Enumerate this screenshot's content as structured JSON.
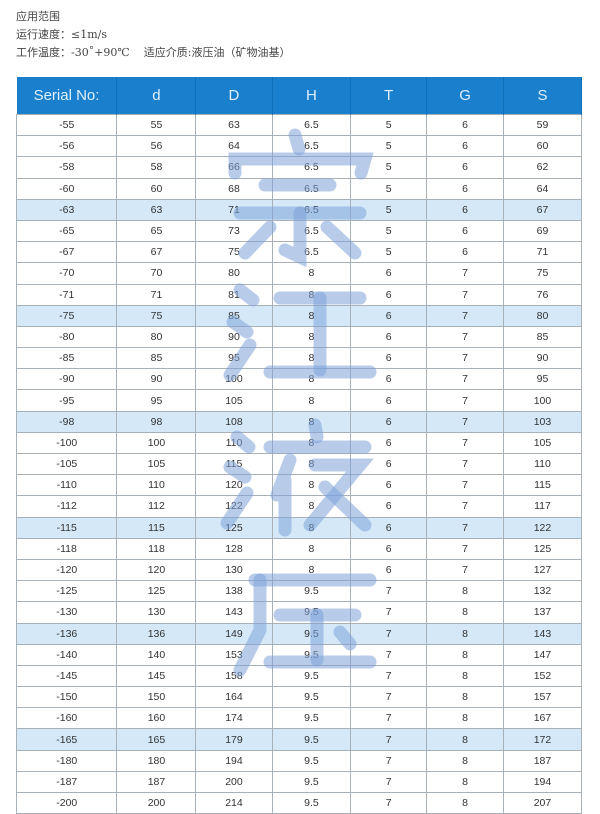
{
  "intro": {
    "title": "应用范围",
    "speed": "运行速度：≤1m/s",
    "temperature": "工作温度：-30˚+90℃",
    "medium": "适应介质:液压油（矿物油基）"
  },
  "watermark": [
    "宗",
    "江",
    "液",
    "压"
  ],
  "table": {
    "headers": [
      "Serial No:",
      "d",
      "D",
      "H",
      "T",
      "G",
      "S"
    ],
    "header_color": "#1a7fcc",
    "highlight_color": "#d4e8f8",
    "rows": [
      {
        "cells": [
          "-55",
          "55",
          "63",
          "6.5",
          "5",
          "6",
          "59"
        ],
        "hl": false
      },
      {
        "cells": [
          "-56",
          "56",
          "64",
          "6.5",
          "5",
          "6",
          "60"
        ],
        "hl": false
      },
      {
        "cells": [
          "-58",
          "58",
          "66",
          "6.5",
          "5",
          "6",
          "62"
        ],
        "hl": false
      },
      {
        "cells": [
          "-60",
          "60",
          "68",
          "6.5",
          "5",
          "6",
          "64"
        ],
        "hl": false
      },
      {
        "cells": [
          "-63",
          "63",
          "71",
          "6.5",
          "5",
          "6",
          "67"
        ],
        "hl": true
      },
      {
        "cells": [
          "-65",
          "65",
          "73",
          "6.5",
          "5",
          "6",
          "69"
        ],
        "hl": false
      },
      {
        "cells": [
          "-67",
          "67",
          "75",
          "6.5",
          "5",
          "6",
          "71"
        ],
        "hl": false
      },
      {
        "cells": [
          "-70",
          "70",
          "80",
          "8",
          "6",
          "7",
          "75"
        ],
        "hl": false
      },
      {
        "cells": [
          "-71",
          "71",
          "81",
          "8",
          "6",
          "7",
          "76"
        ],
        "hl": false
      },
      {
        "cells": [
          "-75",
          "75",
          "85",
          "8",
          "6",
          "7",
          "80"
        ],
        "hl": true
      },
      {
        "cells": [
          "-80",
          "80",
          "90",
          "8",
          "6",
          "7",
          "85"
        ],
        "hl": false
      },
      {
        "cells": [
          "-85",
          "85",
          "95",
          "8",
          "6",
          "7",
          "90"
        ],
        "hl": false
      },
      {
        "cells": [
          "-90",
          "90",
          "100",
          "8",
          "6",
          "7",
          "95"
        ],
        "hl": false
      },
      {
        "cells": [
          "-95",
          "95",
          "105",
          "8",
          "6",
          "7",
          "100"
        ],
        "hl": false
      },
      {
        "cells": [
          "-98",
          "98",
          "108",
          "8",
          "6",
          "7",
          "103"
        ],
        "hl": true
      },
      {
        "cells": [
          "-100",
          "100",
          "110",
          "8",
          "6",
          "7",
          "105"
        ],
        "hl": false
      },
      {
        "cells": [
          "-105",
          "105",
          "115",
          "8",
          "6",
          "7",
          "110"
        ],
        "hl": false
      },
      {
        "cells": [
          "-110",
          "110",
          "120",
          "8",
          "6",
          "7",
          "115"
        ],
        "hl": false
      },
      {
        "cells": [
          "-112",
          "112",
          "122",
          "8",
          "6",
          "7",
          "117"
        ],
        "hl": false
      },
      {
        "cells": [
          "-115",
          "115",
          "125",
          "8",
          "6",
          "7",
          "122"
        ],
        "hl": true
      },
      {
        "cells": [
          "-118",
          "118",
          "128",
          "8",
          "6",
          "7",
          "125"
        ],
        "hl": false
      },
      {
        "cells": [
          "-120",
          "120",
          "130",
          "8",
          "6",
          "7",
          "127"
        ],
        "hl": false
      },
      {
        "cells": [
          "-125",
          "125",
          "138",
          "9.5",
          "7",
          "8",
          "132"
        ],
        "hl": false
      },
      {
        "cells": [
          "-130",
          "130",
          "143",
          "9.5",
          "7",
          "8",
          "137"
        ],
        "hl": false
      },
      {
        "cells": [
          "-136",
          "136",
          "149",
          "9.5",
          "7",
          "8",
          "143"
        ],
        "hl": true
      },
      {
        "cells": [
          "-140",
          "140",
          "153",
          "9.5",
          "7",
          "8",
          "147"
        ],
        "hl": false
      },
      {
        "cells": [
          "-145",
          "145",
          "158",
          "9.5",
          "7",
          "8",
          "152"
        ],
        "hl": false
      },
      {
        "cells": [
          "-150",
          "150",
          "164",
          "9.5",
          "7",
          "8",
          "157"
        ],
        "hl": false
      },
      {
        "cells": [
          "-160",
          "160",
          "174",
          "9.5",
          "7",
          "8",
          "167"
        ],
        "hl": false
      },
      {
        "cells": [
          "-165",
          "165",
          "179",
          "9.5",
          "7",
          "8",
          "172"
        ],
        "hl": true
      },
      {
        "cells": [
          "-180",
          "180",
          "194",
          "9.5",
          "7",
          "8",
          "187"
        ],
        "hl": false
      },
      {
        "cells": [
          "-187",
          "187",
          "200",
          "9.5",
          "7",
          "8",
          "194"
        ],
        "hl": false
      },
      {
        "cells": [
          "-200",
          "200",
          "214",
          "9.5",
          "7",
          "8",
          "207"
        ],
        "hl": false
      }
    ]
  }
}
